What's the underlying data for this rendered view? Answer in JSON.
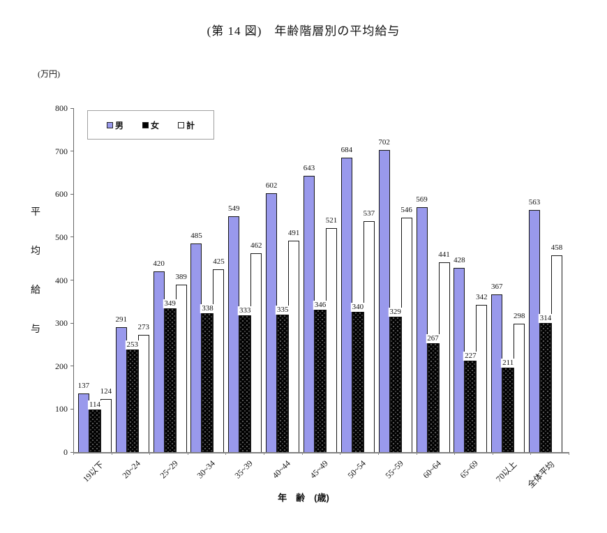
{
  "title": "(第 14 図)　年齢階層別の平均給与",
  "y_axis": {
    "unit_label": "(万円)",
    "title": "平均給与",
    "min": 0,
    "max": 800,
    "step": 100
  },
  "x_axis": {
    "title": "年　齢　(歳)"
  },
  "chart_data": {
    "type": "bar",
    "title": "(第 14 図)　年齢階層別の平均給与",
    "xlabel": "年齢(歳)",
    "ylabel": "平均給与(万円)",
    "ylim": [
      0,
      800
    ],
    "ytick_step": 100,
    "grid": false,
    "legend_position": "top-left-inside",
    "categories": [
      "19以下",
      "20~24",
      "25~29",
      "30~34",
      "35~39",
      "40~44",
      "45~49",
      "50~54",
      "55~59",
      "60~64",
      "65~69",
      "70以上",
      "全体平均"
    ],
    "series": [
      {
        "key": "male",
        "name": "男",
        "color": "#9999EC",
        "pattern": "solid",
        "values": [
          137,
          291,
          420,
          485,
          549,
          602,
          643,
          684,
          702,
          569,
          428,
          367,
          563
        ]
      },
      {
        "key": "female",
        "name": "女",
        "color": "#000000",
        "pattern": "dots",
        "values": [
          114,
          253,
          349,
          338,
          333,
          335,
          346,
          340,
          329,
          267,
          227,
          211,
          314
        ]
      },
      {
        "key": "total",
        "name": "計",
        "color": "#FFFFFF",
        "pattern": "solid",
        "values": [
          124,
          273,
          389,
          425,
          462,
          491,
          521,
          537,
          546,
          441,
          342,
          298,
          458
        ]
      }
    ],
    "colors": {
      "axis": "#666666",
      "baseline": "#808080",
      "male_bar": "#9999EC",
      "female_bar": "#000000",
      "total_bar": "#FFFFFF"
    }
  }
}
